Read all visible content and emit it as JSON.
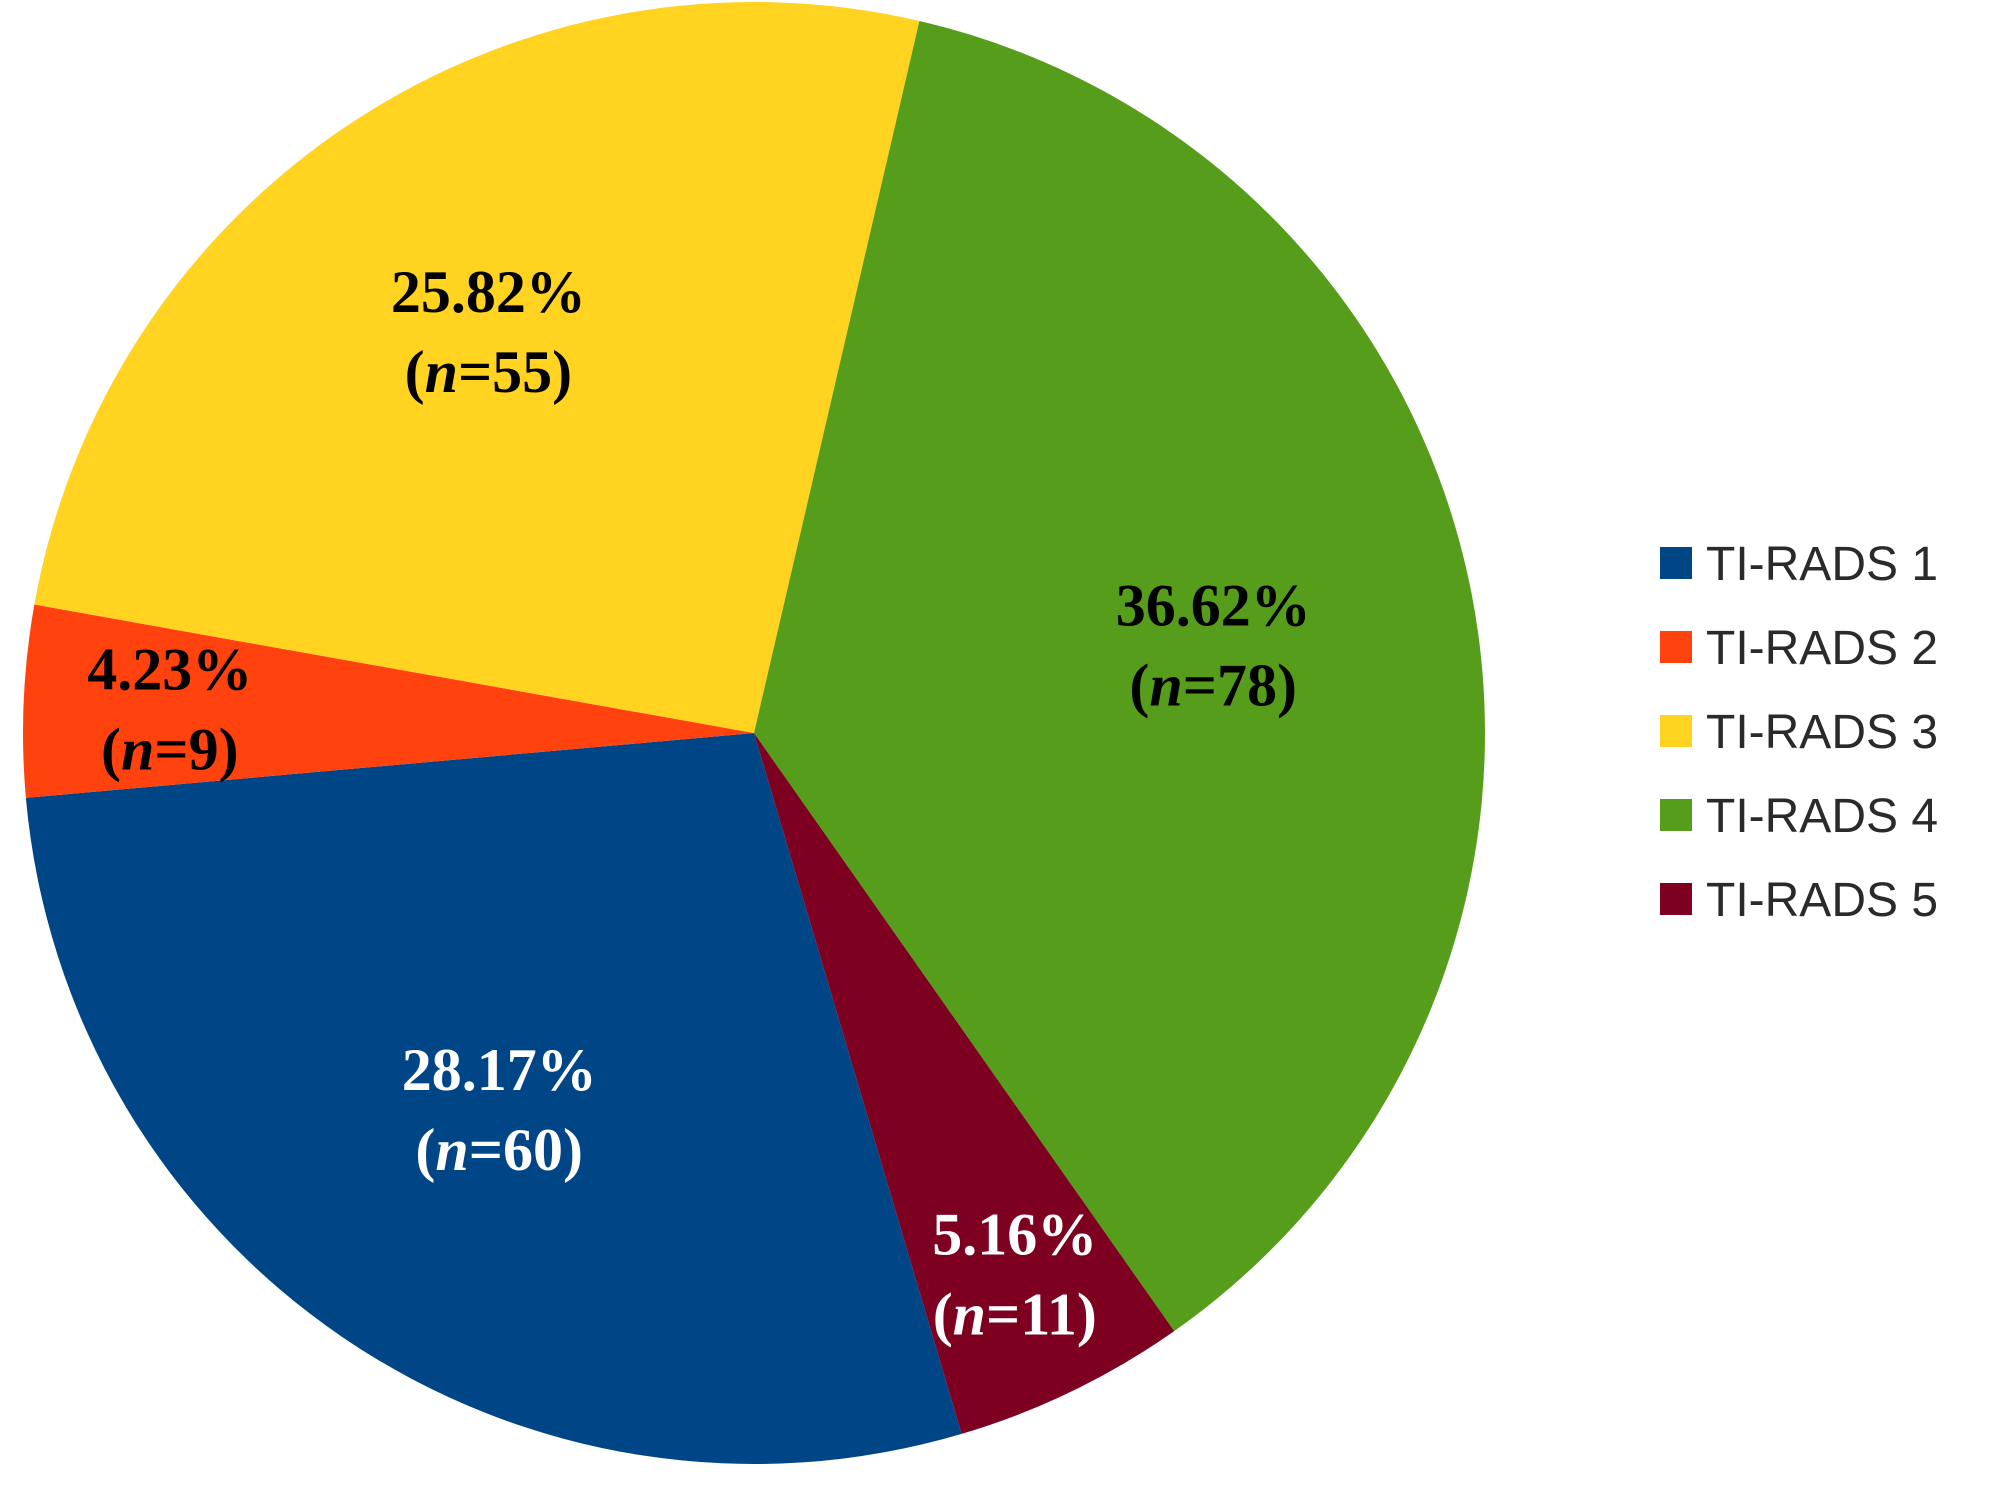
{
  "chart_data": {
    "type": "pie",
    "slices": [
      {
        "label": "TI-RADS 1",
        "percent_label": "28.17%",
        "n": "60",
        "value": 60,
        "percent": 28.17,
        "color": "#004586",
        "text_color": "#ffffff"
      },
      {
        "label": "TI-RADS 2",
        "percent_label": "4.23%",
        "n": "9",
        "value": 9,
        "percent": 4.23,
        "color": "#ff420e",
        "text_color": "#000000"
      },
      {
        "label": "TI-RADS 3",
        "percent_label": "25.82%",
        "n": "55",
        "value": 55,
        "percent": 25.82,
        "color": "#ffd320",
        "text_color": "#000000"
      },
      {
        "label": "TI-RADS 4",
        "percent_label": "36.62%",
        "n": "78",
        "value": 78,
        "percent": 36.62,
        "color": "#579d1c",
        "text_color": "#000000"
      },
      {
        "label": "TI-RADS 5",
        "percent_label": "5.16%",
        "n": "11",
        "value": 11,
        "percent": 5.16,
        "color": "#7e0021",
        "text_color": "#ffffff"
      }
    ],
    "n_symbol": "n",
    "n_separator": "=",
    "legend_position": "right"
  }
}
